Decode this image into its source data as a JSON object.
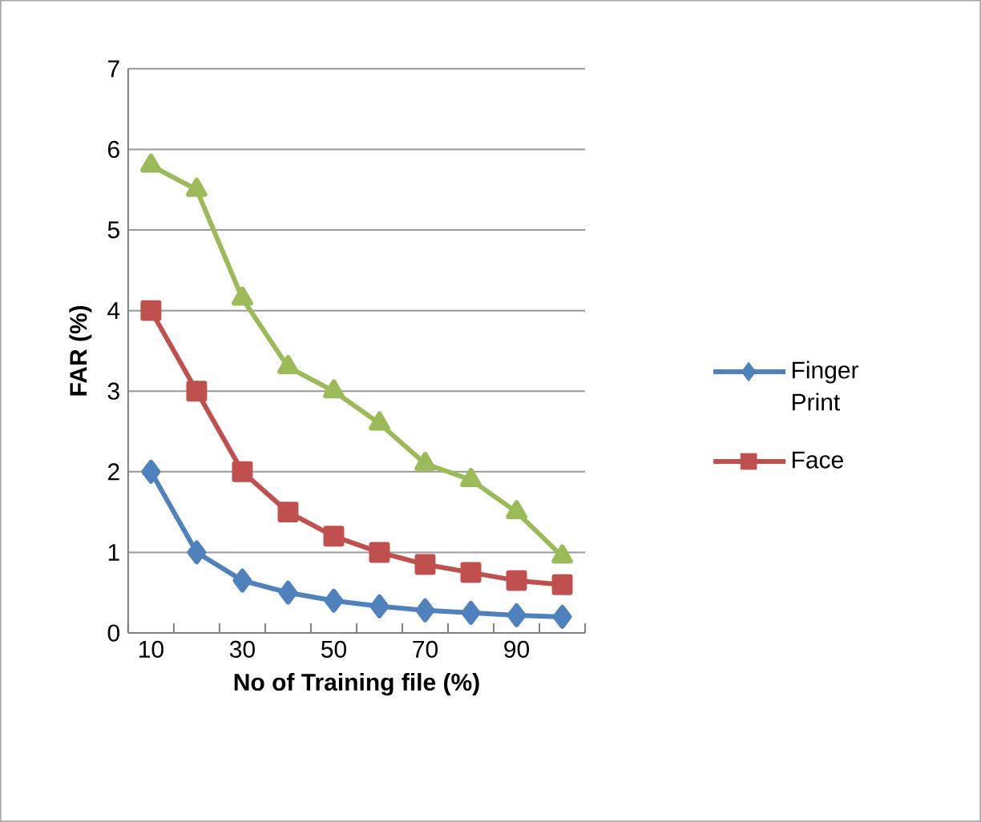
{
  "chart_data": {
    "type": "line",
    "xlabel": "No of Training file (%)",
    "ylabel": "FAR (%)",
    "categories": [
      "10",
      null,
      "30",
      null,
      "50",
      null,
      "70",
      null,
      "90",
      null
    ],
    "ylim": [
      0,
      7
    ],
    "yticks": [
      0,
      1,
      2,
      3,
      4,
      5,
      6,
      7
    ],
    "grid": "y",
    "legend": "right",
    "series": [
      {
        "name": "Finger Print",
        "color": "#4f81bd",
        "marker": "diamond",
        "values": [
          2,
          1,
          0.65,
          0.5,
          0.4,
          0.33,
          0.28,
          0.25,
          0.22,
          0.2
        ]
      },
      {
        "name": "Face",
        "color": "#c0504d",
        "marker": "square",
        "values": [
          4,
          3,
          2,
          1.5,
          1.2,
          1.0,
          0.85,
          0.75,
          0.65,
          0.6
        ]
      },
      {
        "color": "#9bbb59",
        "marker": "triangle",
        "values": [
          5.8,
          5.5,
          4.15,
          3.3,
          3.0,
          2.6,
          2.1,
          1.9,
          1.5,
          0.95
        ]
      }
    ]
  }
}
